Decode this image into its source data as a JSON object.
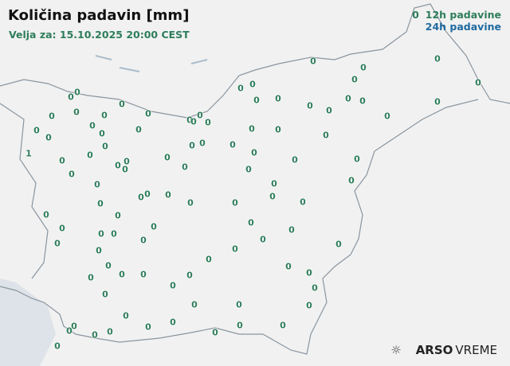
{
  "title": "Količina padavin [mm]",
  "valid_for": "Velja za: 15.10.2025 20:00 CEST",
  "legend": {
    "sample": "0",
    "h12": "12h padavine",
    "h24": "24h padavine",
    "color_12h": "#2e7d5b",
    "color_24h": "#1f6aa0"
  },
  "logo": {
    "icon": "weather-sun-icon",
    "brand": "ARSO",
    "suffix": "VREME"
  },
  "stations": [
    "0",
    "0",
    "0",
    "0",
    "0",
    "0",
    "0",
    "0",
    "0",
    "0",
    "0",
    "0",
    "0",
    "0",
    "0",
    "0",
    "1",
    "0",
    "0",
    "0",
    "0",
    "0",
    "0",
    "0",
    "0",
    "0",
    "0",
    "0",
    "0",
    "0",
    "0",
    "0",
    "0",
    "0",
    "0",
    "0",
    "0",
    "0",
    "0",
    "0",
    "0",
    "0",
    "0",
    "0",
    "0",
    "0",
    "0",
    "0",
    "0",
    "0",
    "0",
    "0",
    "0",
    "0",
    "0",
    "0",
    "0",
    "0",
    "0",
    "0",
    "0",
    "0",
    "0",
    "0",
    "0",
    "0",
    "0",
    "0",
    "0",
    "0",
    "0",
    "0",
    "0",
    "0",
    "0",
    "0",
    "0",
    "0",
    "0",
    "0",
    "0",
    "0",
    "0",
    "0",
    "0",
    "0",
    "0",
    "0",
    "0",
    "0",
    "0",
    "0",
    "0",
    "0",
    "0",
    "0",
    "0",
    "0",
    "0",
    "0",
    "0"
  ]
}
